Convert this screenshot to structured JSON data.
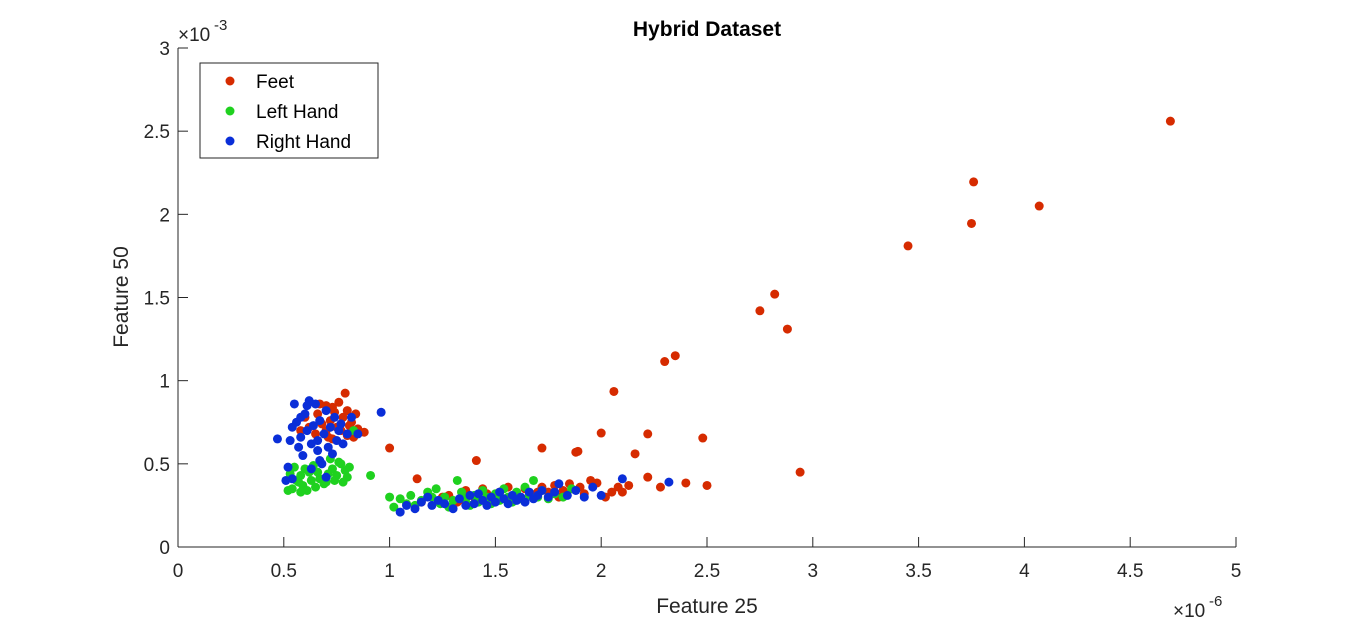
{
  "chart_data": {
    "type": "scatter",
    "title": "Hybrid Dataset",
    "xlabel": "Feature 25",
    "ylabel": "Feature 50",
    "x_multiplier": {
      "base": "×10",
      "exp": "-6"
    },
    "y_multiplier": {
      "base": "×10",
      "exp": "-3"
    },
    "xlim": [
      0,
      5
    ],
    "ylim": [
      0,
      3
    ],
    "xticks": [
      0,
      0.5,
      1,
      1.5,
      2,
      2.5,
      3,
      3.5,
      4,
      4.5,
      5
    ],
    "yticks": [
      0,
      0.5,
      1,
      1.5,
      2,
      2.5,
      3
    ],
    "xtick_labels": [
      "0",
      "0.5",
      "1",
      "1.5",
      "2",
      "2.5",
      "3",
      "3.5",
      "4",
      "4.5",
      "5"
    ],
    "ytick_labels": [
      "0",
      "0.5",
      "1",
      "1.5",
      "2",
      "2.5",
      "3"
    ],
    "grid": false,
    "legend_position": "top-left",
    "series": [
      {
        "name": "Feet",
        "color": "#d62b00",
        "points": [
          [
            4.69,
            2.56
          ],
          [
            3.76,
            2.195
          ],
          [
            4.07,
            2.05
          ],
          [
            3.75,
            1.945
          ],
          [
            3.45,
            1.81
          ],
          [
            2.82,
            1.52
          ],
          [
            2.75,
            1.42
          ],
          [
            2.88,
            1.31
          ],
          [
            2.35,
            1.15
          ],
          [
            2.3,
            1.115
          ],
          [
            2.06,
            0.935
          ],
          [
            2.94,
            0.45
          ],
          [
            2.48,
            0.655
          ],
          [
            2.22,
            0.68
          ],
          [
            2.0,
            0.685
          ],
          [
            2.16,
            0.56
          ],
          [
            1.88,
            0.57
          ],
          [
            1.89,
            0.575
          ],
          [
            1.72,
            0.595
          ],
          [
            1.41,
            0.52
          ],
          [
            1.0,
            0.595
          ],
          [
            1.13,
            0.41
          ],
          [
            2.5,
            0.37
          ],
          [
            2.4,
            0.385
          ],
          [
            2.28,
            0.36
          ],
          [
            2.22,
            0.42
          ],
          [
            2.13,
            0.37
          ],
          [
            2.08,
            0.36
          ],
          [
            2.05,
            0.33
          ],
          [
            1.98,
            0.385
          ],
          [
            1.95,
            0.4
          ],
          [
            1.9,
            0.36
          ],
          [
            1.85,
            0.38
          ],
          [
            1.82,
            0.34
          ],
          [
            1.78,
            0.37
          ],
          [
            1.75,
            0.33
          ],
          [
            1.72,
            0.36
          ],
          [
            1.68,
            0.31
          ],
          [
            1.64,
            0.35
          ],
          [
            1.6,
            0.3
          ],
          [
            1.56,
            0.36
          ],
          [
            1.52,
            0.33
          ],
          [
            1.48,
            0.3
          ],
          [
            1.44,
            0.35
          ],
          [
            1.4,
            0.3
          ],
          [
            1.36,
            0.34
          ],
          [
            1.32,
            0.27
          ],
          [
            1.28,
            0.31
          ],
          [
            2.1,
            0.33
          ],
          [
            2.02,
            0.3
          ],
          [
            1.92,
            0.32
          ],
          [
            1.8,
            0.3
          ],
          [
            1.7,
            0.33
          ],
          [
            1.58,
            0.29
          ],
          [
            1.46,
            0.32
          ],
          [
            1.35,
            0.28
          ],
          [
            1.25,
            0.3
          ],
          [
            1.15,
            0.27
          ],
          [
            0.79,
            0.925
          ],
          [
            0.73,
            0.84
          ],
          [
            0.76,
            0.87
          ],
          [
            0.7,
            0.85
          ],
          [
            0.67,
            0.86
          ],
          [
            0.8,
            0.82
          ],
          [
            0.84,
            0.8
          ],
          [
            0.78,
            0.78
          ],
          [
            0.82,
            0.75
          ],
          [
            0.72,
            0.76
          ],
          [
            0.68,
            0.74
          ],
          [
            0.75,
            0.72
          ],
          [
            0.86,
            0.69
          ],
          [
            0.88,
            0.69
          ],
          [
            0.8,
            0.67
          ],
          [
            0.83,
            0.66
          ],
          [
            0.77,
            0.7
          ],
          [
            0.7,
            0.7
          ],
          [
            0.65,
            0.68
          ],
          [
            0.73,
            0.65
          ],
          [
            0.6,
            0.78
          ],
          [
            0.62,
            0.72
          ],
          [
            0.58,
            0.7
          ],
          [
            0.66,
            0.8
          ],
          [
            0.71,
            0.66
          ],
          [
            0.85,
            0.71
          ],
          [
            0.81,
            0.73
          ],
          [
            0.74,
            0.81
          ]
        ]
      },
      {
        "name": "Left Hand",
        "color": "#1fd11f",
        "points": [
          [
            0.52,
            0.34
          ],
          [
            0.54,
            0.35
          ],
          [
            0.56,
            0.4
          ],
          [
            0.58,
            0.43
          ],
          [
            0.6,
            0.47
          ],
          [
            0.62,
            0.45
          ],
          [
            0.57,
            0.39
          ],
          [
            0.53,
            0.44
          ],
          [
            0.55,
            0.48
          ],
          [
            0.59,
            0.37
          ],
          [
            0.61,
            0.34
          ],
          [
            0.63,
            0.4
          ],
          [
            0.65,
            0.36
          ],
          [
            0.67,
            0.41
          ],
          [
            0.69,
            0.38
          ],
          [
            0.71,
            0.44
          ],
          [
            0.73,
            0.47
          ],
          [
            0.75,
            0.43
          ],
          [
            0.77,
            0.5
          ],
          [
            0.79,
            0.46
          ],
          [
            0.81,
            0.48
          ],
          [
            0.72,
            0.53
          ],
          [
            0.76,
            0.51
          ],
          [
            0.8,
            0.42
          ],
          [
            0.66,
            0.45
          ],
          [
            0.64,
            0.49
          ],
          [
            0.7,
            0.39
          ],
          [
            0.74,
            0.4
          ],
          [
            0.83,
            0.7
          ],
          [
            0.91,
            0.43
          ],
          [
            0.78,
            0.39
          ],
          [
            0.58,
            0.33
          ],
          [
            1.0,
            0.3
          ],
          [
            1.02,
            0.24
          ],
          [
            1.05,
            0.29
          ],
          [
            1.08,
            0.26
          ],
          [
            1.1,
            0.31
          ],
          [
            1.12,
            0.25
          ],
          [
            1.15,
            0.28
          ],
          [
            1.18,
            0.33
          ],
          [
            1.2,
            0.3
          ],
          [
            1.22,
            0.35
          ],
          [
            1.24,
            0.26
          ],
          [
            1.26,
            0.3
          ],
          [
            1.28,
            0.24
          ],
          [
            1.3,
            0.28
          ],
          [
            1.32,
            0.4
          ],
          [
            1.34,
            0.33
          ],
          [
            1.36,
            0.29
          ],
          [
            1.38,
            0.25
          ],
          [
            1.4,
            0.31
          ],
          [
            1.42,
            0.27
          ],
          [
            1.44,
            0.34
          ],
          [
            1.46,
            0.3
          ],
          [
            1.48,
            0.26
          ],
          [
            1.5,
            0.32
          ],
          [
            1.52,
            0.28
          ],
          [
            1.54,
            0.35
          ],
          [
            1.56,
            0.3
          ],
          [
            1.58,
            0.27
          ],
          [
            1.6,
            0.33
          ],
          [
            1.62,
            0.29
          ],
          [
            1.64,
            0.36
          ],
          [
            1.66,
            0.31
          ],
          [
            1.68,
            0.4
          ],
          [
            1.7,
            0.3
          ],
          [
            1.72,
            0.34
          ],
          [
            1.75,
            0.29
          ],
          [
            1.78,
            0.32
          ],
          [
            1.82,
            0.3
          ],
          [
            1.86,
            0.35
          ]
        ]
      },
      {
        "name": "Right Hand",
        "color": "#0a2ed8",
        "points": [
          [
            0.47,
            0.65
          ],
          [
            0.52,
            0.48
          ],
          [
            0.51,
            0.4
          ],
          [
            0.54,
            0.41
          ],
          [
            0.53,
            0.64
          ],
          [
            0.55,
            0.86
          ],
          [
            0.54,
            0.72
          ],
          [
            0.56,
            0.75
          ],
          [
            0.57,
            0.6
          ],
          [
            0.58,
            0.66
          ],
          [
            0.59,
            0.55
          ],
          [
            0.6,
            0.8
          ],
          [
            0.61,
            0.7
          ],
          [
            0.62,
            0.88
          ],
          [
            0.63,
            0.62
          ],
          [
            0.64,
            0.73
          ],
          [
            0.65,
            0.86
          ],
          [
            0.66,
            0.58
          ],
          [
            0.67,
            0.76
          ],
          [
            0.68,
            0.5
          ],
          [
            0.69,
            0.68
          ],
          [
            0.7,
            0.82
          ],
          [
            0.71,
            0.6
          ],
          [
            0.72,
            0.72
          ],
          [
            0.73,
            0.56
          ],
          [
            0.74,
            0.78
          ],
          [
            0.75,
            0.64
          ],
          [
            0.76,
            0.7
          ],
          [
            0.77,
            0.74
          ],
          [
            0.78,
            0.62
          ],
          [
            0.8,
            0.68
          ],
          [
            0.82,
            0.78
          ],
          [
            0.85,
            0.68
          ],
          [
            0.96,
            0.81
          ],
          [
            0.63,
            0.47
          ],
          [
            0.67,
            0.52
          ],
          [
            0.7,
            0.42
          ],
          [
            0.66,
            0.64
          ],
          [
            0.58,
            0.78
          ],
          [
            0.61,
            0.85
          ],
          [
            1.05,
            0.21
          ],
          [
            1.08,
            0.25
          ],
          [
            1.12,
            0.23
          ],
          [
            1.15,
            0.27
          ],
          [
            1.18,
            0.3
          ],
          [
            1.2,
            0.25
          ],
          [
            1.23,
            0.28
          ],
          [
            1.26,
            0.26
          ],
          [
            1.3,
            0.23
          ],
          [
            1.33,
            0.29
          ],
          [
            1.36,
            0.25
          ],
          [
            1.38,
            0.31
          ],
          [
            1.4,
            0.26
          ],
          [
            1.42,
            0.32
          ],
          [
            1.44,
            0.28
          ],
          [
            1.46,
            0.25
          ],
          [
            1.48,
            0.3
          ],
          [
            1.5,
            0.27
          ],
          [
            1.52,
            0.33
          ],
          [
            1.54,
            0.29
          ],
          [
            1.56,
            0.26
          ],
          [
            1.58,
            0.31
          ],
          [
            1.6,
            0.28
          ],
          [
            1.62,
            0.3
          ],
          [
            1.64,
            0.27
          ],
          [
            1.66,
            0.33
          ],
          [
            1.68,
            0.29
          ],
          [
            1.7,
            0.31
          ],
          [
            1.72,
            0.34
          ],
          [
            1.75,
            0.3
          ],
          [
            1.78,
            0.33
          ],
          [
            1.8,
            0.38
          ],
          [
            1.84,
            0.31
          ],
          [
            1.88,
            0.34
          ],
          [
            1.92,
            0.3
          ],
          [
            1.96,
            0.36
          ],
          [
            2.0,
            0.31
          ],
          [
            2.1,
            0.41
          ],
          [
            2.32,
            0.39
          ]
        ]
      }
    ]
  }
}
